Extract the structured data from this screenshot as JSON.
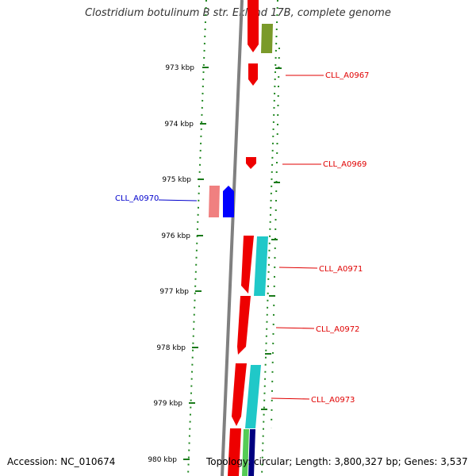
{
  "title": "Clostridium botulinum B str. Eklund 17B, complete genome",
  "footer": {
    "accession": "Accession: NC_010674",
    "topology": "Topology: circular; Length: 3,800,327 bp; Genes: 3,537"
  },
  "ticks": [
    "973 kbp",
    "974 kbp",
    "975 kbp",
    "976 kbp",
    "977 kbp",
    "978 kbp",
    "979 kbp",
    "980 kbp"
  ],
  "gene_labels": [
    {
      "name": "CLL_A0967",
      "color": "#e00000"
    },
    {
      "name": "CLL_A0969",
      "color": "#e00000"
    },
    {
      "name": "CLL_A0970",
      "color": "#0000cc"
    },
    {
      "name": "CLL_A0971",
      "color": "#e00000"
    },
    {
      "name": "CLL_A0972",
      "color": "#e00000"
    },
    {
      "name": "CLL_A0973",
      "color": "#e00000"
    }
  ],
  "colors": {
    "backbone": "#808080",
    "tick": "#1a7a1a",
    "dot": "#228822",
    "red": "#ee0000",
    "pink": "#f08080",
    "blue": "#0000ff",
    "cyan": "#20c8c8",
    "olive": "#7a9a2a",
    "green": "#55cc55",
    "navy": "#000080"
  }
}
